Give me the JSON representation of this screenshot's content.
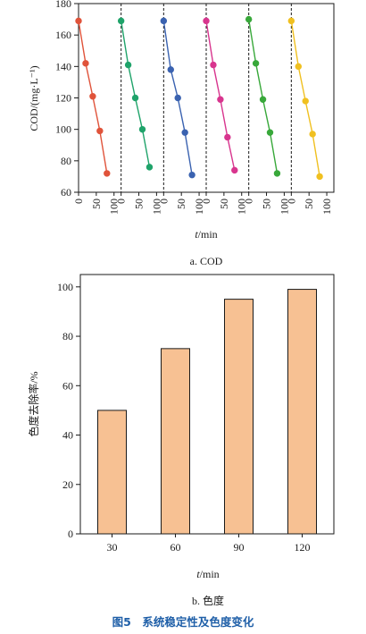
{
  "figure_caption": "图5　系统稳定性及色度变化",
  "chart_data": [
    {
      "type": "line",
      "caption": "a. COD",
      "ylabel": "COD/(mg·L⁻¹)",
      "xlabel_italic": "t",
      "xlabel_rest": "/min",
      "ylim": [
        60,
        180
      ],
      "yticks": [
        60,
        80,
        100,
        120,
        140,
        160,
        180
      ],
      "xticks": [
        0,
        50,
        100
      ],
      "xlim_per_cycle": [
        0,
        120
      ],
      "cycles": [
        {
          "color": "#e0533a",
          "x": [
            0,
            20,
            40,
            60,
            80
          ],
          "y": [
            169,
            142,
            121,
            99,
            72
          ]
        },
        {
          "color": "#1fa36a",
          "x": [
            0,
            20,
            40,
            60,
            80
          ],
          "y": [
            169,
            141,
            120,
            100,
            76
          ]
        },
        {
          "color": "#3a62b0",
          "x": [
            0,
            20,
            40,
            60,
            80
          ],
          "y": [
            169,
            138,
            120,
            98,
            71
          ]
        },
        {
          "color": "#d8358e",
          "x": [
            0,
            20,
            40,
            60,
            80
          ],
          "y": [
            169,
            141,
            119,
            95,
            74
          ]
        },
        {
          "color": "#38a83a",
          "x": [
            0,
            20,
            40,
            60,
            80
          ],
          "y": [
            170,
            142,
            119,
            98,
            72
          ]
        },
        {
          "color": "#f0c020",
          "x": [
            0,
            20,
            40,
            60,
            80
          ],
          "y": [
            169,
            140,
            118,
            97,
            70
          ]
        }
      ]
    },
    {
      "type": "bar",
      "caption": "b. 色度",
      "ylabel": "色度去除率/%",
      "xlabel_italic": "t",
      "xlabel_rest": "/min",
      "categories": [
        "30",
        "60",
        "90",
        "120"
      ],
      "values": [
        50,
        75,
        95,
        99
      ],
      "ylim": [
        0,
        105
      ],
      "yticks": [
        0,
        20,
        40,
        60,
        80,
        100
      ],
      "bar_color": "#f7c193"
    }
  ]
}
